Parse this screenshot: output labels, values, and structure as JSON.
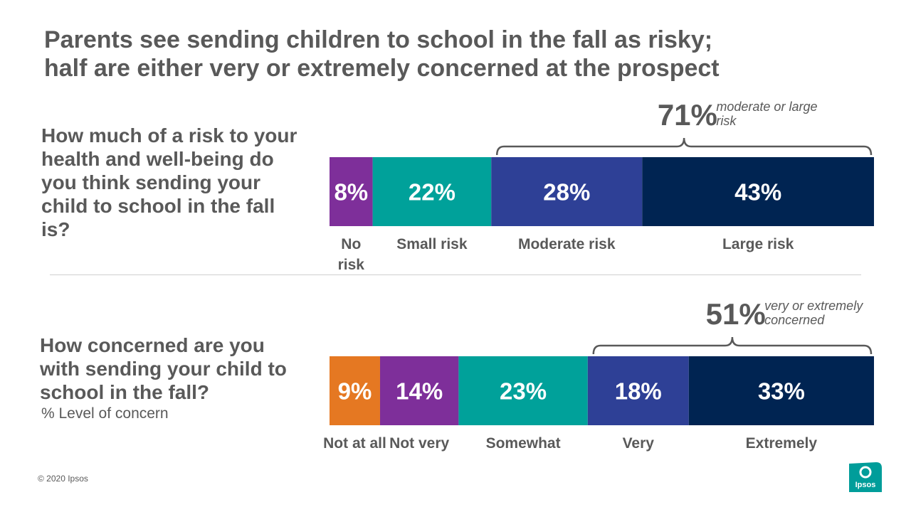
{
  "title": {
    "line1": "Parents see sending children to school in the fall as risky;",
    "line2": "half are either very or extremely concerned at the prospect"
  },
  "chart_data": [
    {
      "type": "bar",
      "orientation": "horizontal-stacked",
      "question": "How much of a risk to your health and well-being do you think sending your child to school in the fall is?",
      "categories": [
        "No risk",
        "Small risk",
        "Moderate risk",
        "Large risk"
      ],
      "values": [
        8,
        22,
        28,
        43
      ],
      "value_labels": [
        "8%",
        "22%",
        "28%",
        "43%"
      ],
      "colors": [
        "#7E2F9A",
        "#00A19A",
        "#2E4096",
        "#002452"
      ],
      "bracket": {
        "value": "71%",
        "text": "moderate or large risk",
        "from_index": 2,
        "to_index": 3
      }
    },
    {
      "type": "bar",
      "orientation": "horizontal-stacked",
      "question": "How concerned are you with sending your child to school in the fall?",
      "subtitle": "% Level of concern",
      "categories": [
        "Not at all",
        "Not very",
        "Somewhat",
        "Very",
        "Extremely"
      ],
      "values": [
        9,
        14,
        23,
        18,
        33
      ],
      "value_labels": [
        "9%",
        "14%",
        "23%",
        "18%",
        "33%"
      ],
      "colors": [
        "#E57822",
        "#7E2F9A",
        "#00A19A",
        "#2E4096",
        "#002452"
      ],
      "bracket": {
        "value": "51%",
        "text": "very or extremely concerned",
        "from_index": 3,
        "to_index": 4
      }
    }
  ],
  "footer": "© 2020 Ipsos",
  "logo": {
    "text": "Ipsos",
    "color": "#009D9A"
  }
}
